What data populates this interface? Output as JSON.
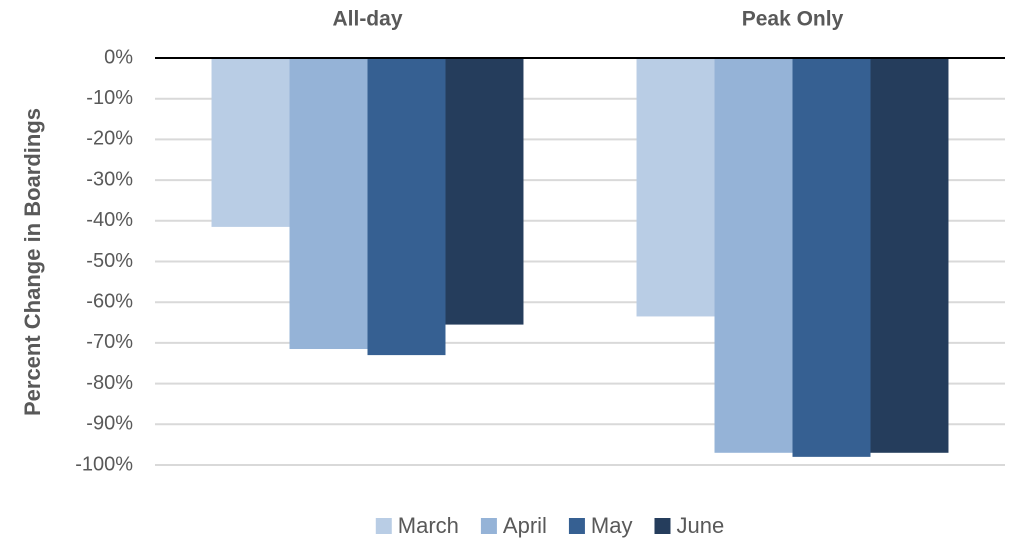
{
  "chart_data": {
    "type": "bar",
    "y_label": "Percent Change in Boardings",
    "categories": [
      "All-day",
      "Peak Only"
    ],
    "series": [
      {
        "name": "March",
        "color": "#b9cde5",
        "values": [
          -41.5,
          -63.5
        ]
      },
      {
        "name": "April",
        "color": "#95b3d7",
        "values": [
          -71.5,
          -97
        ]
      },
      {
        "name": "May",
        "color": "#366092",
        "values": [
          -73,
          -98
        ]
      },
      {
        "name": "June",
        "color": "#253d5c",
        "values": [
          -65.5,
          -97
        ]
      }
    ],
    "ylim": [
      -100,
      0
    ],
    "yticks": [
      {
        "value": 0,
        "label": "0%"
      },
      {
        "value": -10,
        "label": "-10%"
      },
      {
        "value": -20,
        "label": "-20%"
      },
      {
        "value": -30,
        "label": "-30%"
      },
      {
        "value": -40,
        "label": "-40%"
      },
      {
        "value": -50,
        "label": "-50%"
      },
      {
        "value": -60,
        "label": "-60%"
      },
      {
        "value": -70,
        "label": "-70%"
      },
      {
        "value": -80,
        "label": "-80%"
      },
      {
        "value": -90,
        "label": "-90%"
      },
      {
        "value": -100,
        "label": "-100%"
      }
    ],
    "grid": true,
    "legend": "bottom"
  }
}
